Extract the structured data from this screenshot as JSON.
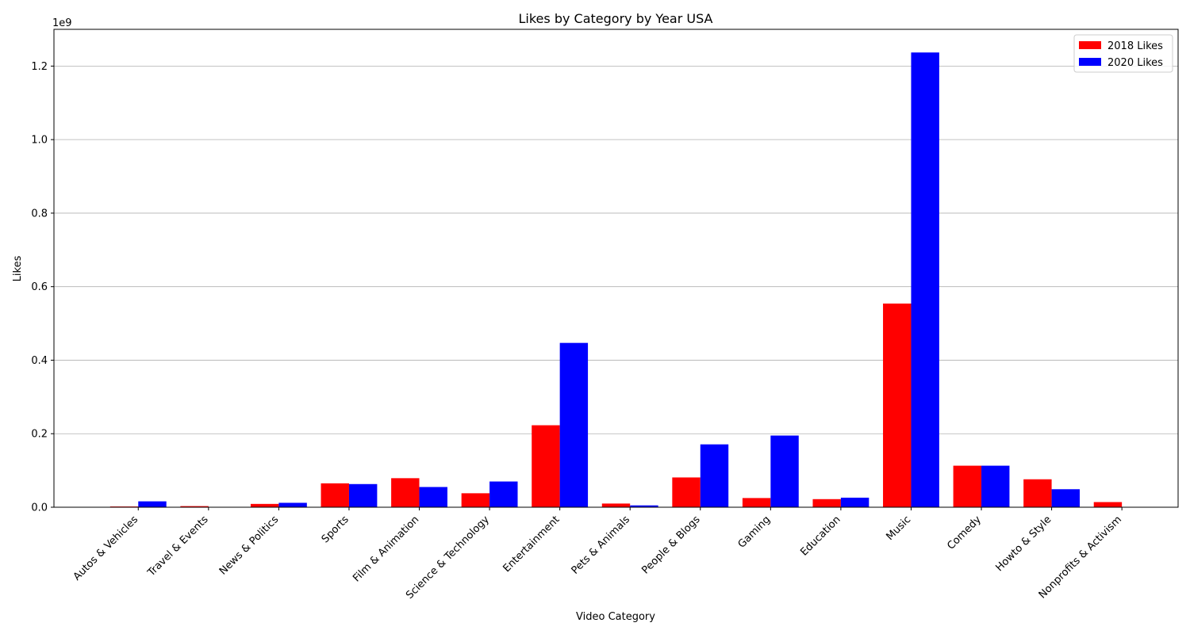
{
  "chart_data": {
    "type": "bar",
    "title": "Likes by Category by Year USA",
    "xlabel": "Video Category",
    "ylabel": "Likes",
    "y_offset_label": "1e9",
    "ylim": [
      0,
      1.3
    ],
    "yticks": [
      "0.0",
      "0.2",
      "0.4",
      "0.6",
      "0.8",
      "1.0",
      "1.2"
    ],
    "grid": "horizontal",
    "legend_position": "top-right",
    "categories": [
      "Autos & Vehicles",
      "Travel & Events",
      "News & Politics",
      "Sports",
      "Film & Animation",
      "Science & Technology",
      "Entertainment",
      "Pets & Animals",
      "People & Blogs",
      "Gaming",
      "Education",
      "Music",
      "Comedy",
      "Howto & Style",
      "Nonprofits & Activism"
    ],
    "series": [
      {
        "name": "2018 Likes",
        "color": "#ff0000",
        "values": [
          0.002,
          0.003,
          0.009,
          0.065,
          0.079,
          0.038,
          0.223,
          0.01,
          0.081,
          0.025,
          0.022,
          0.554,
          0.113,
          0.076,
          0.014
        ]
      },
      {
        "name": "2020 Likes",
        "color": "#0000ff",
        "values": [
          0.016,
          0.0,
          0.012,
          0.063,
          0.055,
          0.07,
          0.447,
          0.005,
          0.171,
          0.195,
          0.026,
          1.237,
          0.113,
          0.049,
          0.0
        ]
      }
    ]
  }
}
